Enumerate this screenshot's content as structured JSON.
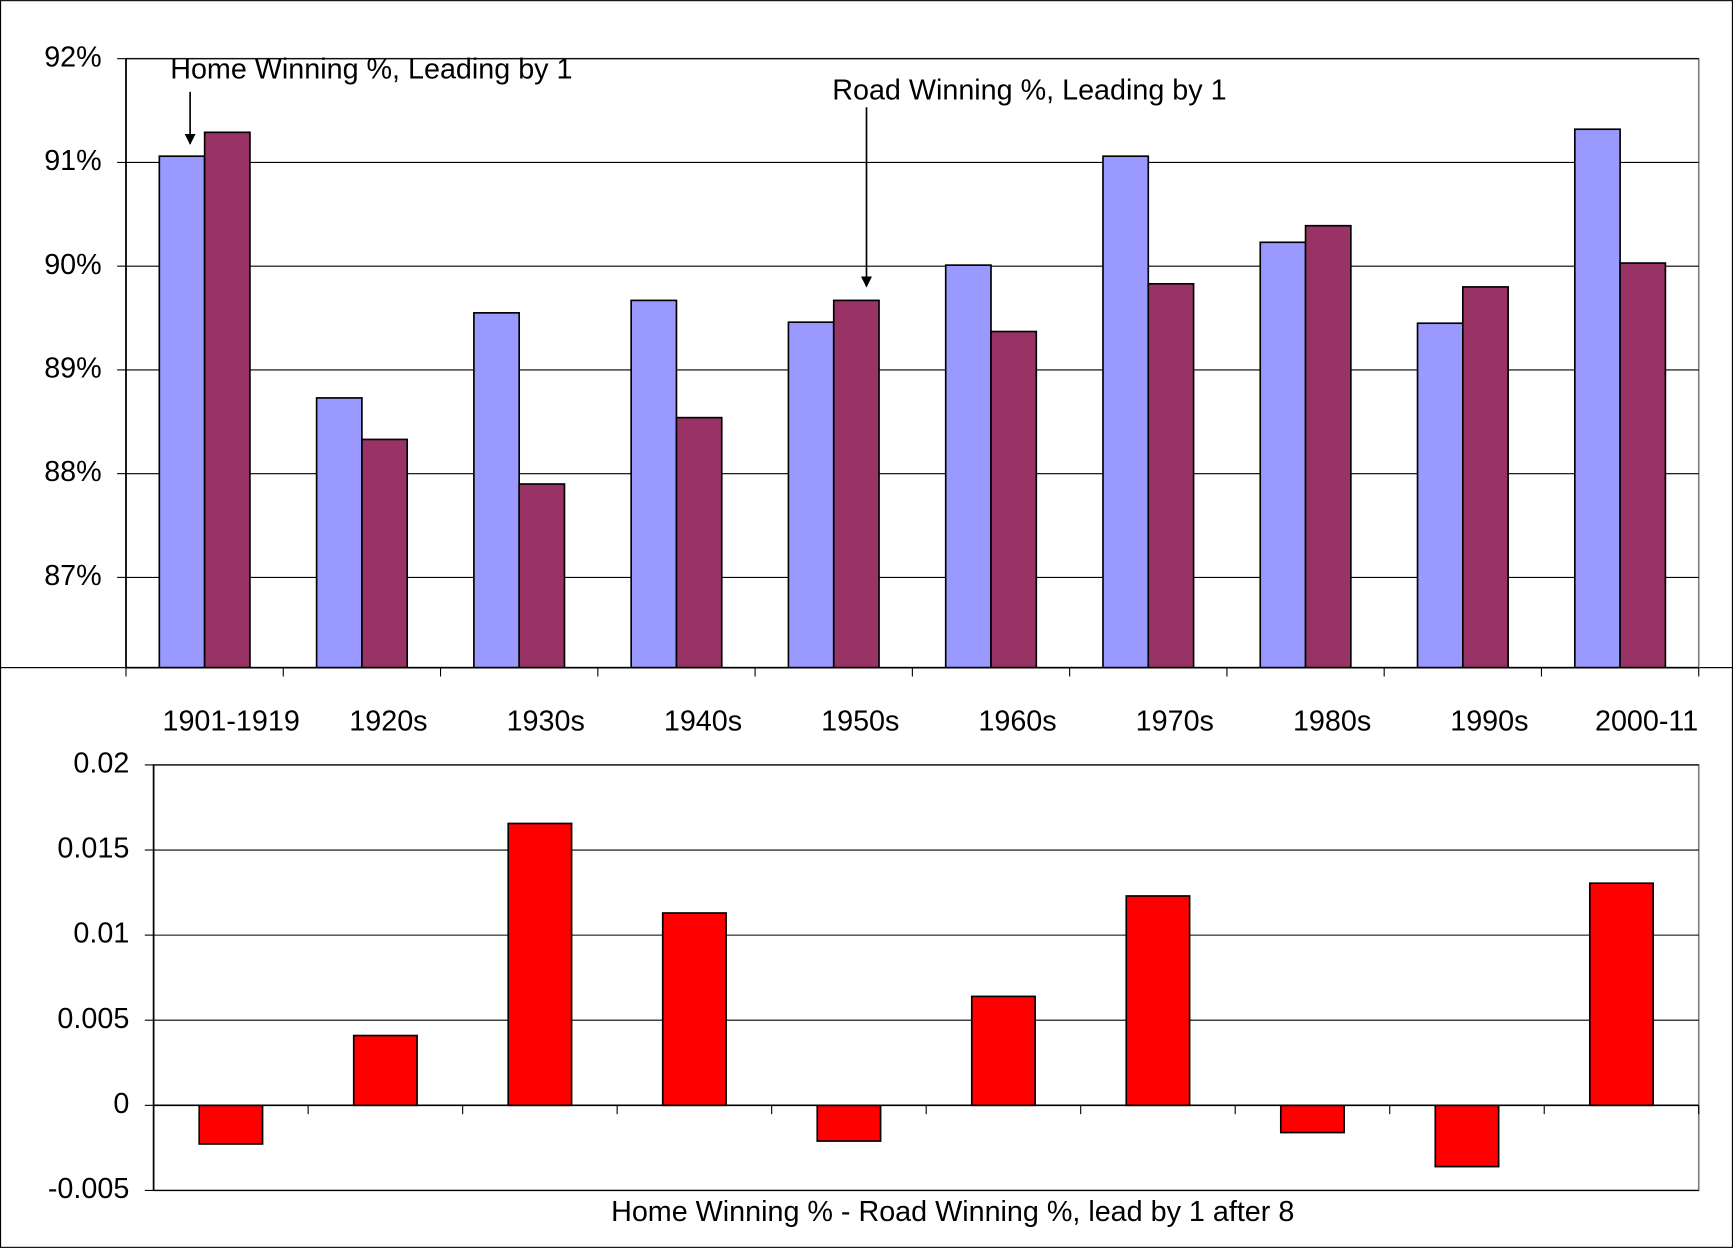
{
  "chart_data": [
    {
      "type": "bar",
      "categories": [
        "1901-1919",
        "1920s",
        "1930s",
        "1940s",
        "1950s",
        "1960s",
        "1970s",
        "1980s",
        "1990s",
        "2000-11"
      ],
      "series": [
        {
          "name": "Home Winning %, Leading by 1",
          "color": "#9999ff",
          "values": [
            91.06,
            88.73,
            89.55,
            89.67,
            89.46,
            90.01,
            91.06,
            90.23,
            89.45,
            91.32
          ]
        },
        {
          "name": "Road Winning %, Leading by 1",
          "color": "#993366",
          "values": [
            91.29,
            88.33,
            87.9,
            88.54,
            89.67,
            89.37,
            89.83,
            90.39,
            89.8,
            90.03
          ]
        }
      ],
      "ylim": [
        86.13,
        92
      ],
      "yticks": [
        {
          "value": 87,
          "label": "87%"
        },
        {
          "value": 88,
          "label": "88%"
        },
        {
          "value": 89,
          "label": "89%"
        },
        {
          "value": 90,
          "label": "90%"
        },
        {
          "value": 91,
          "label": "91%"
        },
        {
          "value": 92,
          "label": "92%"
        }
      ],
      "grid": true
    },
    {
      "type": "bar",
      "x_label": "Home Winning % - Road Winning %, lead by 1 after 8",
      "values": [
        -0.00227,
        0.0041,
        0.01656,
        0.0113,
        -0.0021,
        0.0064,
        0.0123,
        -0.0016,
        -0.0036,
        0.01305
      ],
      "color": "#ff0000",
      "ylim": [
        -0.005,
        0.02
      ],
      "yticks": [
        -0.005,
        0,
        0.005,
        0.01,
        0.015,
        0.02
      ],
      "grid": true
    }
  ]
}
